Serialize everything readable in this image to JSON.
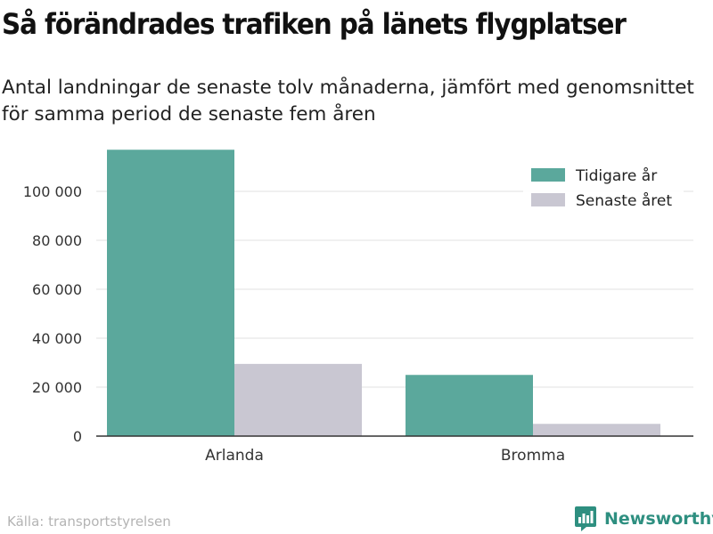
{
  "title": "Så förändrades trafiken på länets flygplatser",
  "subtitle": "Antal landningar de senaste tolv månaderna, jämfört med genomsnittet för samma period de senaste fem åren",
  "source": "Källa: transportstyrelsen",
  "brand": "Newsworthy",
  "colors": {
    "previous": "#5ba89c",
    "latest": "#c9c7d2",
    "brand": "#2e8f80"
  },
  "chart_data": {
    "type": "bar",
    "categories": [
      "Arlanda",
      "Bromma"
    ],
    "series": [
      {
        "name": "Tidigare år",
        "values": [
          117000,
          25000
        ]
      },
      {
        "name": "Senaste året",
        "values": [
          29500,
          5000
        ]
      }
    ],
    "yticks": [
      0,
      20000,
      40000,
      60000,
      80000,
      100000
    ],
    "ytick_labels": [
      "0",
      "20 000",
      "40 000",
      "60 000",
      "80 000",
      "100 000"
    ],
    "ylim": [
      0,
      118000
    ],
    "xlabel": "",
    "ylabel": "",
    "grid": true,
    "legend": "top-right"
  }
}
